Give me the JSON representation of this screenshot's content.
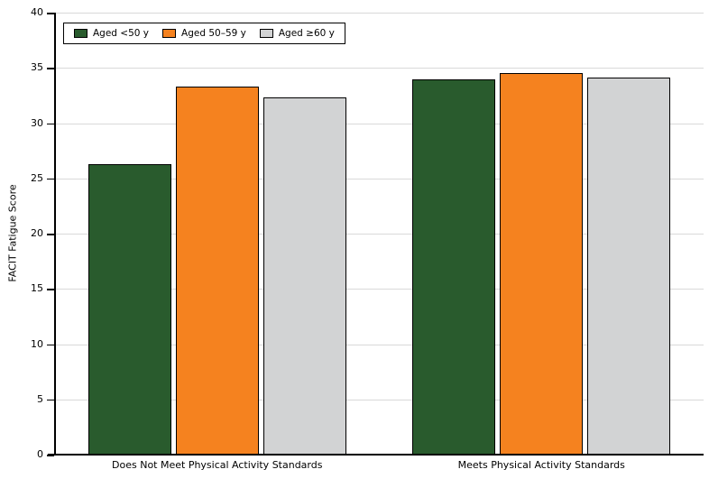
{
  "chart_data": {
    "type": "bar",
    "title": "",
    "ylabel": "FACIT Fatigue Score",
    "xlabel": "",
    "ylim": [
      0,
      40
    ],
    "yticks": [
      0,
      5,
      10,
      15,
      20,
      25,
      30,
      35,
      40
    ],
    "grid": "horizontal",
    "legend_position": "top-left-inside",
    "categories": [
      "Does Not Meet Physical Activity Standards",
      "Meets Physical Activity Standards"
    ],
    "series": [
      {
        "name": "Aged <50 y",
        "color": "#295b2d",
        "values": [
          26.3,
          34.0
        ]
      },
      {
        "name": "Aged 50–59 y",
        "color": "#f5821f",
        "values": [
          33.3,
          34.5
        ]
      },
      {
        "name": "Aged ≥60 y",
        "color": "#d2d3d4",
        "values": [
          32.3,
          34.1
        ]
      }
    ],
    "colors": {
      "bar_border": "#000000",
      "gridline": "#d9d9d9",
      "axis": "#000000",
      "text": "#000000",
      "background": "#ffffff"
    }
  }
}
